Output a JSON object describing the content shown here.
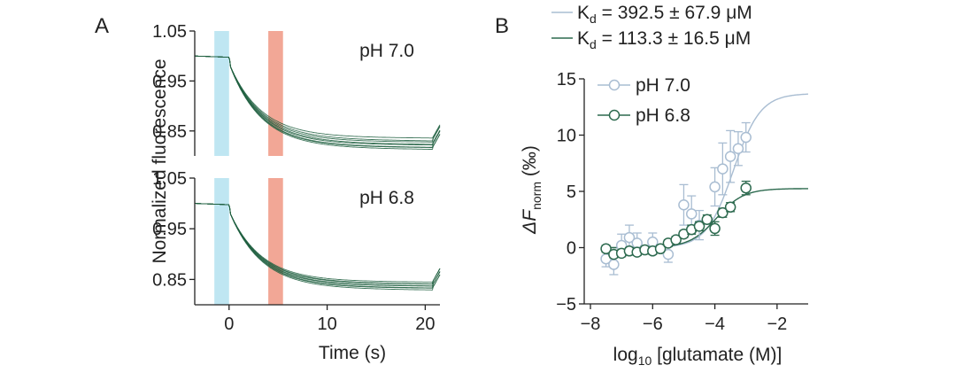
{
  "chart_data": [
    {
      "panel": "A",
      "type": "line",
      "ylabel": "Normalized fluorescence",
      "xlabel": "Time (s)",
      "xlim": [
        -3.5,
        21.5
      ],
      "xticks": [
        0,
        10,
        20
      ],
      "xtick_labels": [
        "0",
        "10",
        "20"
      ],
      "colors": {
        "trace": "#1f5f3f",
        "blue_bar": "#bfe6f2",
        "red_bar": "#f2a796"
      },
      "stim_bars_s": [
        [
          -1.5,
          0.0
        ],
        [
          4.0,
          5.5
        ]
      ],
      "subplots": [
        {
          "label": "pH 7.0",
          "ylim": [
            0.8,
            1.05
          ],
          "yticks": [
            1.05,
            0.95,
            0.85
          ],
          "ytick_labels": [
            "1.05",
            "0.95",
            "0.85"
          ],
          "traces_final": [
            0.838,
            0.834,
            0.83,
            0.827,
            0.824,
            0.821,
            0.819,
            0.817
          ]
        },
        {
          "label": "pH 6.8",
          "ylim": [
            0.8,
            1.05
          ],
          "yticks": [
            1.05,
            0.95,
            0.85
          ],
          "ytick_labels": [
            "1.05",
            "0.95",
            "0.85"
          ],
          "traces_final": [
            0.847,
            0.845,
            0.843,
            0.841,
            0.839,
            0.837,
            0.835,
            0.833
          ]
        }
      ]
    },
    {
      "panel": "B",
      "type": "scatter",
      "xlabel_main": "log",
      "xlabel_sub": "10",
      "xlabel_rest": " [glutamate (M)]",
      "ylabel_delta": "ΔF",
      "ylabel_sub": "norm",
      "ylabel_unit": " (‰)",
      "xlim": [
        -8.2,
        -1.0
      ],
      "ylim": [
        -5,
        15
      ],
      "xticks": [
        -8,
        -6,
        -4,
        -2
      ],
      "xtick_labels": [
        "−8",
        "−6",
        "−4",
        "−2"
      ],
      "yticks": [
        -5,
        0,
        5,
        10,
        15
      ],
      "ytick_labels": [
        "−5",
        "0",
        "5",
        "10",
        "15"
      ],
      "fit_legend": [
        {
          "prefix": "K",
          "sub": "d",
          "text": " = 392.5 ± 67.9 μM",
          "color": "#a9bdd2"
        },
        {
          "prefix": "K",
          "sub": "d",
          "text": " = 113.3 ± 16.5 μM",
          "color": "#2d6a4f"
        }
      ],
      "series": [
        {
          "name": "pH 7.0",
          "color": "#a9bdd2",
          "x": [
            -7.5,
            -7.25,
            -7.0,
            -6.75,
            -6.5,
            -6.0,
            -5.5,
            -5.0,
            -4.75,
            -4.5,
            -4.0,
            -3.75,
            -3.5,
            -3.25,
            -3.0
          ],
          "y": [
            -1.0,
            -1.5,
            0.2,
            0.9,
            0.4,
            0.5,
            -0.6,
            3.8,
            3.0,
            2.0,
            5.4,
            7.0,
            8.1,
            8.8,
            9.8
          ],
          "err": [
            0.7,
            0.9,
            1.0,
            1.1,
            0.9,
            0.8,
            0.7,
            1.8,
            1.6,
            1.3,
            1.7,
            2.3,
            2.3,
            1.5,
            1.3
          ],
          "fit": {
            "kd_log": -3.406,
            "bottom": 0.0,
            "top": 13.7
          }
        },
        {
          "name": "pH 6.8",
          "color": "#2d6a4f",
          "x": [
            -7.5,
            -7.25,
            -7.0,
            -6.75,
            -6.5,
            -6.25,
            -6.0,
            -5.75,
            -5.5,
            -5.25,
            -5.0,
            -4.75,
            -4.5,
            -4.25,
            -4.0,
            -3.75,
            -3.5,
            -3.0
          ],
          "y": [
            -0.1,
            -0.6,
            -0.5,
            -0.3,
            -0.4,
            -0.2,
            -0.3,
            -0.1,
            0.4,
            0.7,
            1.2,
            1.6,
            1.9,
            2.5,
            1.7,
            3.1,
            3.6,
            5.3
          ],
          "err": [
            0.3,
            0.3,
            0.3,
            0.3,
            0.3,
            0.3,
            0.3,
            0.3,
            0.3,
            0.3,
            0.3,
            0.4,
            0.4,
            0.4,
            0.6,
            0.4,
            0.4,
            0.6
          ],
          "fit": {
            "kd_log": -3.946,
            "bottom": 0.0,
            "top": 5.25
          }
        }
      ]
    }
  ]
}
